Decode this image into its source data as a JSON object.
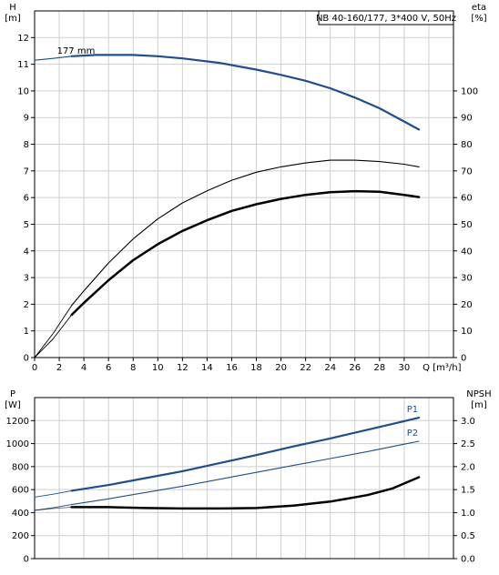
{
  "chart_data": [
    {
      "type": "line",
      "title": "NB 40-160/177, 3*400 V, 50Hz",
      "x_axis": {
        "label": "Q [m³/h]",
        "range": [
          0,
          34
        ],
        "ticks": [
          0,
          2,
          4,
          6,
          8,
          10,
          12,
          14,
          16,
          18,
          20,
          22,
          24,
          26,
          28,
          30
        ]
      },
      "y_left": {
        "label_top": "H",
        "label_unit": "[m]",
        "range": [
          0,
          13
        ],
        "ticks": [
          0,
          1,
          2,
          3,
          4,
          5,
          6,
          7,
          8,
          9,
          10,
          11,
          12
        ]
      },
      "y_right": {
        "label_top": "eta",
        "label_unit": "[%]",
        "range": [
          0,
          130
        ],
        "ticks": [
          0,
          10,
          20,
          30,
          40,
          50,
          60,
          70,
          80,
          90,
          100
        ]
      },
      "grid": true,
      "annotations": [
        {
          "text": "177 mm",
          "series": "head"
        }
      ],
      "series": [
        {
          "key": "head",
          "axis": "left",
          "color": "#1f4e8c",
          "width": 2.2,
          "opacity": 1,
          "points": [
            [
              3,
              11.3
            ],
            [
              5,
              11.35
            ],
            [
              8,
              11.35
            ],
            [
              10,
              11.3
            ],
            [
              12,
              11.22
            ],
            [
              15,
              11.05
            ],
            [
              18,
              10.8
            ],
            [
              20,
              10.6
            ],
            [
              22,
              10.38
            ],
            [
              24,
              10.1
            ],
            [
              26,
              9.75
            ],
            [
              28,
              9.35
            ],
            [
              30,
              8.85
            ],
            [
              31.2,
              8.55
            ]
          ]
        },
        {
          "key": "head-extension",
          "axis": "left",
          "color": "#1f4e8c",
          "width": 1.2,
          "opacity": 1,
          "points": [
            [
              0,
              11.15
            ],
            [
              1.5,
              11.22
            ],
            [
              3,
              11.3
            ]
          ]
        },
        {
          "key": "eta-pump",
          "axis": "right",
          "color": "#000000",
          "width": 1.1,
          "opacity": 1,
          "points": [
            [
              3,
              19.5
            ],
            [
              4,
              25
            ],
            [
              6,
              35.5
            ],
            [
              8,
              44.5
            ],
            [
              10,
              52
            ],
            [
              12,
              58
            ],
            [
              14,
              62.5
            ],
            [
              16,
              66.5
            ],
            [
              18,
              69.5
            ],
            [
              20,
              71.5
            ],
            [
              22,
              73
            ],
            [
              24,
              74
            ],
            [
              26,
              74
            ],
            [
              28,
              73.5
            ],
            [
              30,
              72.5
            ],
            [
              31.2,
              71.5
            ]
          ]
        },
        {
          "key": "eta-total",
          "axis": "right",
          "color": "#000000",
          "width": 2.5,
          "opacity": 1,
          "points": [
            [
              3,
              16
            ],
            [
              4,
              20.5
            ],
            [
              6,
              29
            ],
            [
              8,
              36.5
            ],
            [
              10,
              42.5
            ],
            [
              12,
              47.5
            ],
            [
              14,
              51.5
            ],
            [
              16,
              55
            ],
            [
              18,
              57.5
            ],
            [
              20,
              59.5
            ],
            [
              22,
              61
            ],
            [
              24,
              62
            ],
            [
              26,
              62.4
            ],
            [
              28,
              62.2
            ],
            [
              30,
              61
            ],
            [
              31.2,
              60.2
            ]
          ]
        },
        {
          "key": "eta-extension-1",
          "axis": "right",
          "color": "#000000",
          "width": 0.9,
          "opacity": 1,
          "points": [
            [
              0,
              0
            ],
            [
              1.5,
              9
            ],
            [
              3,
              19.5
            ]
          ]
        },
        {
          "key": "eta-extension-2",
          "axis": "right",
          "color": "#000000",
          "width": 0.9,
          "opacity": 1,
          "points": [
            [
              0,
              0
            ],
            [
              1.5,
              7
            ],
            [
              3,
              16
            ]
          ]
        }
      ]
    },
    {
      "type": "line",
      "title": "",
      "x_axis": {
        "label": "",
        "range": [
          0,
          34
        ],
        "ticks": []
      },
      "y_left": {
        "label_top": "P",
        "label_unit": "[W]",
        "range": [
          0,
          1400
        ],
        "ticks": [
          0,
          200,
          400,
          600,
          800,
          1000,
          1200
        ]
      },
      "y_right": {
        "label_top": "NPSH",
        "label_unit": "[m]",
        "range": [
          0,
          3.5
        ],
        "ticks": [
          "0.0",
          "0.5",
          "1.0",
          "1.5",
          "2.0",
          "2.5",
          "3.0"
        ]
      },
      "grid": true,
      "annotations": [
        {
          "text": "P1",
          "series": "p1"
        },
        {
          "text": "P2",
          "series": "p2"
        }
      ],
      "series": [
        {
          "key": "p1",
          "axis": "left",
          "color": "#1f4e8c",
          "width": 2.2,
          "opacity": 1,
          "points": [
            [
              3,
              590
            ],
            [
              6,
              640
            ],
            [
              9,
              700
            ],
            [
              12,
              760
            ],
            [
              15,
              830
            ],
            [
              18,
              900
            ],
            [
              21,
              975
            ],
            [
              24,
              1045
            ],
            [
              27,
              1120
            ],
            [
              30,
              1195
            ],
            [
              31.2,
              1225
            ]
          ]
        },
        {
          "key": "p2",
          "axis": "left",
          "color": "#1f4e8c",
          "width": 1.1,
          "opacity": 1,
          "points": [
            [
              3,
              470
            ],
            [
              6,
              520
            ],
            [
              9,
              575
            ],
            [
              12,
              630
            ],
            [
              15,
              690
            ],
            [
              18,
              750
            ],
            [
              21,
              810
            ],
            [
              24,
              870
            ],
            [
              27,
              930
            ],
            [
              30,
              995
            ],
            [
              31.2,
              1020
            ]
          ]
        },
        {
          "key": "npsh",
          "axis": "right",
          "color": "#000000",
          "width": 2.5,
          "opacity": 1,
          "points": [
            [
              3,
              1.12
            ],
            [
              6,
              1.12
            ],
            [
              9,
              1.1
            ],
            [
              12,
              1.09
            ],
            [
              15,
              1.09
            ],
            [
              18,
              1.1
            ],
            [
              21,
              1.15
            ],
            [
              24,
              1.24
            ],
            [
              27,
              1.38
            ],
            [
              29,
              1.52
            ],
            [
              31.2,
              1.77
            ]
          ]
        },
        {
          "key": "p1-extension",
          "axis": "left",
          "color": "#1f4e8c",
          "width": 0.9,
          "opacity": 1,
          "points": [
            [
              0,
              535
            ],
            [
              1.5,
              560
            ],
            [
              3,
              590
            ]
          ]
        },
        {
          "key": "p2-extension",
          "axis": "left",
          "color": "#1f4e8c",
          "width": 0.9,
          "opacity": 1,
          "points": [
            [
              0,
              420
            ],
            [
              1.5,
              442
            ],
            [
              3,
              470
            ]
          ]
        },
        {
          "key": "npsh-extension",
          "axis": "right",
          "color": "#000000",
          "width": 0.9,
          "opacity": 0.6,
          "points": [
            [
              0,
              1.05
            ],
            [
              1.5,
              1.09
            ],
            [
              3,
              1.12
            ]
          ]
        }
      ]
    }
  ]
}
